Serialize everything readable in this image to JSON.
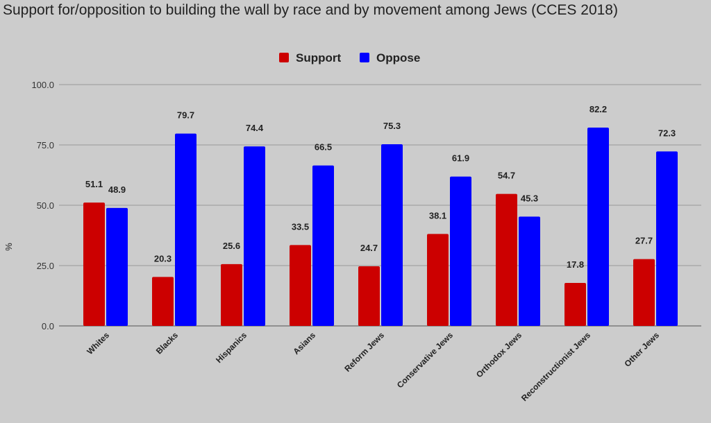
{
  "chart_data": {
    "type": "bar",
    "title": "Support for/opposition to building the wall by race and by movement among Jews (CCES 2018)",
    "xlabel": "",
    "ylabel": "%",
    "ylim": [
      0,
      100
    ],
    "yticks": [
      "0.0",
      "25.0",
      "50.0",
      "75.0",
      "100.0"
    ],
    "grid": true,
    "legend_position": "top-center",
    "categories": [
      "Whites",
      "Blacks",
      "Hispanics",
      "Asians",
      "Reform Jews",
      "Conservative Jews",
      "Orthodox Jews",
      "Reconstructionist Jews",
      "Other Jews"
    ],
    "series": [
      {
        "name": "Support",
        "color": "#cc0000",
        "values": [
          51.1,
          20.3,
          25.6,
          33.5,
          24.7,
          38.1,
          54.7,
          17.8,
          27.7
        ]
      },
      {
        "name": "Oppose",
        "color": "#0000ff",
        "values": [
          48.9,
          79.7,
          74.4,
          66.5,
          75.3,
          61.9,
          45.3,
          82.2,
          72.3
        ]
      }
    ]
  }
}
